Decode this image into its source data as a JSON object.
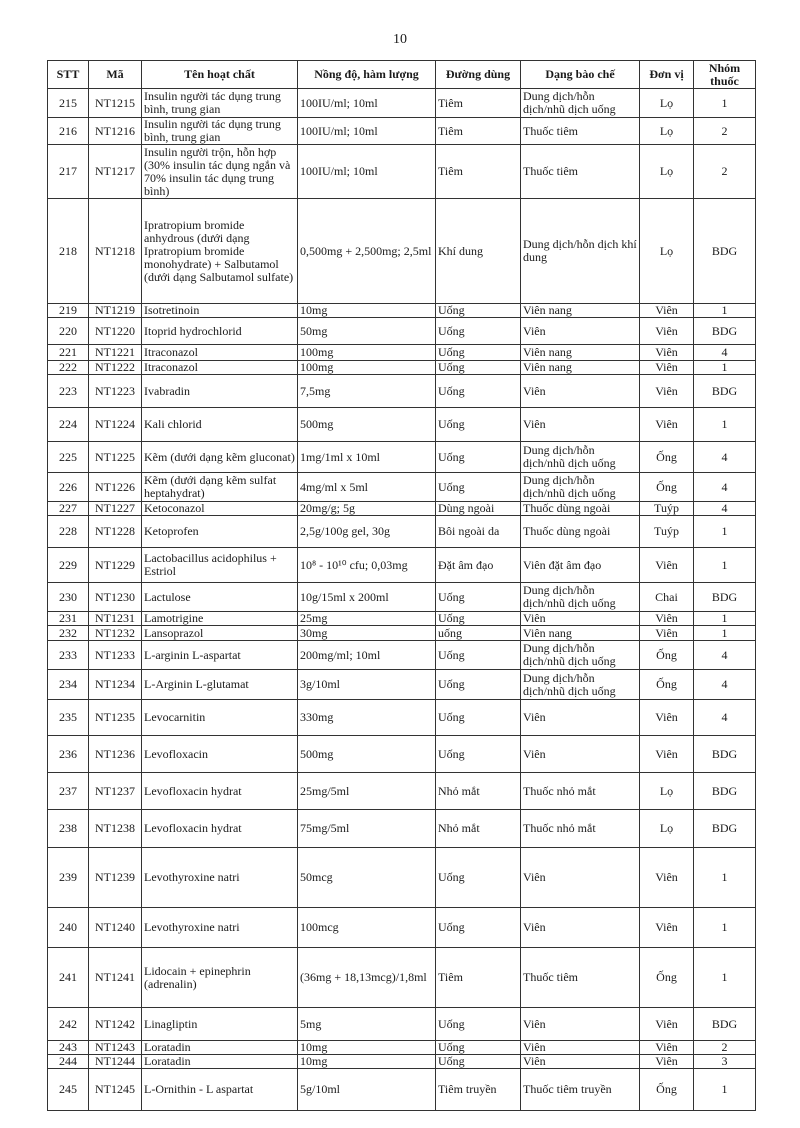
{
  "page_number": "10",
  "table": {
    "headers": [
      "STT",
      "Mã",
      "Tên hoạt chất",
      "Nồng độ, hàm lượng",
      "Đường dùng",
      "Dạng bào chế",
      "Đơn vị",
      "Nhóm thuốc"
    ],
    "rows": [
      [
        "215",
        "NT1215",
        "Insulin người tác dụng trung bình, trung gian",
        "100IU/ml; 10ml",
        "Tiêm",
        "Dung dịch/hỗn dịch/nhũ dịch uống",
        "Lọ",
        "1"
      ],
      [
        "216",
        "NT1216",
        "Insulin người tác dụng trung bình, trung gian",
        "100IU/ml; 10ml",
        "Tiêm",
        "Thuốc tiêm",
        "Lọ",
        "2"
      ],
      [
        "217",
        "NT1217",
        "Insulin người trộn, hỗn hợp (30% insulin tác dụng ngắn và 70% insulin tác dụng trung bình)",
        "100IU/ml; 10ml",
        "Tiêm",
        "Thuốc tiêm",
        "Lọ",
        "2"
      ],
      [
        "218",
        "NT1218",
        "Ipratropium bromide anhydrous (dưới dạng Ipratropium bromide monohydrate) + Salbutamol (dưới dạng Salbutamol sulfate)",
        "0,500mg + 2,500mg; 2,5ml",
        "Khí dung",
        "Dung dịch/hỗn dịch khí dung",
        "Lọ",
        "BDG"
      ],
      [
        "219",
        "NT1219",
        "Isotretinoin",
        "10mg",
        "Uống",
        "Viên nang",
        "Viên",
        "1"
      ],
      [
        "220",
        "NT1220",
        "Itoprid hydrochlorid",
        "50mg",
        "Uống",
        "Viên",
        "Viên",
        "BDG"
      ],
      [
        "221",
        "NT1221",
        "Itraconazol",
        "100mg",
        "Uống",
        "Viên nang",
        "Viên",
        "4"
      ],
      [
        "222",
        "NT1222",
        "Itraconazol",
        "100mg",
        "Uống",
        "Viên nang",
        "Viên",
        "1"
      ],
      [
        "223",
        "NT1223",
        "Ivabradin",
        "7,5mg",
        "Uống",
        "Viên",
        "Viên",
        "BDG"
      ],
      [
        "224",
        "NT1224",
        "Kali chlorid",
        "500mg",
        "Uống",
        "Viên",
        "Viên",
        "1"
      ],
      [
        "225",
        "NT1225",
        "Kẽm (dưới dạng kẽm gluconat)",
        "1mg/1ml x 10ml",
        "Uống",
        "Dung dịch/hỗn dịch/nhũ dịch uống",
        "Ống",
        "4"
      ],
      [
        "226",
        "NT1226",
        "Kẽm (dưới dạng kẽm sulfat heptahydrat)",
        "4mg/ml x 5ml",
        "Uống",
        "Dung dịch/hỗn dịch/nhũ dịch uống",
        "Ống",
        "4"
      ],
      [
        "227",
        "NT1227",
        "Ketoconazol",
        "20mg/g; 5g",
        "Dùng ngoài",
        "Thuốc  dùng ngoài",
        "Tuýp",
        "4"
      ],
      [
        "228",
        "NT1228",
        "Ketoprofen",
        "2,5g/100g gel, 30g",
        "Bôi ngoài da",
        "Thuốc dùng ngoài",
        "Tuýp",
        "1"
      ],
      [
        "229",
        "NT1229",
        "Lactobacillus acidophilus + Estriol",
        "10⁸ - 10¹⁰ cfu; 0,03mg",
        "Đặt âm đạo",
        "Viên đặt âm đạo",
        "Viên",
        "1"
      ],
      [
        "230",
        "NT1230",
        "Lactulose",
        "10g/15ml x 200ml",
        "Uống",
        "Dung dịch/hỗn dịch/nhũ dịch uống",
        "Chai",
        "BDG"
      ],
      [
        "231",
        "NT1231",
        "Lamotrigine",
        "25mg",
        "Uống",
        "Viên",
        "Viên",
        "1"
      ],
      [
        "232",
        "NT1232",
        "Lansoprazol",
        "30mg",
        "uống",
        "Viên nang",
        "Viên",
        "1"
      ],
      [
        "233",
        "NT1233",
        "L-arginin L-aspartat",
        "200mg/ml; 10ml",
        "Uống",
        "Dung dịch/hỗn dịch/nhũ dịch uống",
        "Ống",
        "4"
      ],
      [
        "234",
        "NT1234",
        "L-Arginin L-glutamat",
        "3g/10ml",
        "Uống",
        "Dung dịch/hỗn dịch/nhũ dịch uống",
        "Ống",
        "4"
      ],
      [
        "235",
        "NT1235",
        "Levocarnitin",
        "330mg",
        "Uống",
        "Viên",
        "Viên",
        "4"
      ],
      [
        "236",
        "NT1236",
        "Levofloxacin",
        "500mg",
        "Uống",
        "Viên",
        "Viên",
        "BDG"
      ],
      [
        "237",
        "NT1237",
        "Levofloxacin hydrat",
        "25mg/5ml",
        "Nhỏ mắt",
        "Thuốc nhỏ mắt",
        "Lọ",
        "BDG"
      ],
      [
        "238",
        "NT1238",
        "Levofloxacin hydrat",
        "75mg/5ml",
        "Nhỏ mắt",
        "Thuốc nhỏ mắt",
        "Lọ",
        "BDG"
      ],
      [
        "239",
        "NT1239",
        "Levothyroxine natri",
        "50mcg",
        "Uống",
        "Viên",
        "Viên",
        "1"
      ],
      [
        "240",
        "NT1240",
        "Levothyroxine natri",
        "100mcg",
        "Uống",
        "Viên",
        "Viên",
        "1"
      ],
      [
        "241",
        "NT1241",
        "Lidocain + epinephrin (adrenalin)",
        "(36mg + 18,13mcg)/1,8ml",
        "Tiêm",
        "Thuốc tiêm",
        "Ống",
        "1"
      ],
      [
        "242",
        "NT1242",
        "Linagliptin",
        "5mg",
        "Uống",
        "Viên",
        "Viên",
        "BDG"
      ],
      [
        "243",
        "NT1243",
        "Loratadin",
        "10mg",
        "Uống",
        "Viên",
        "Viên",
        "2"
      ],
      [
        "244",
        "NT1244",
        "Loratadin",
        "10mg",
        "Uống",
        "Viên",
        "Viên",
        "3"
      ],
      [
        "245",
        "NT1245",
        "L-Ornithin - L aspartat",
        "5g/10ml",
        "Tiêm truyền",
        "Thuốc tiêm truyền",
        "Ống",
        "1"
      ]
    ]
  }
}
